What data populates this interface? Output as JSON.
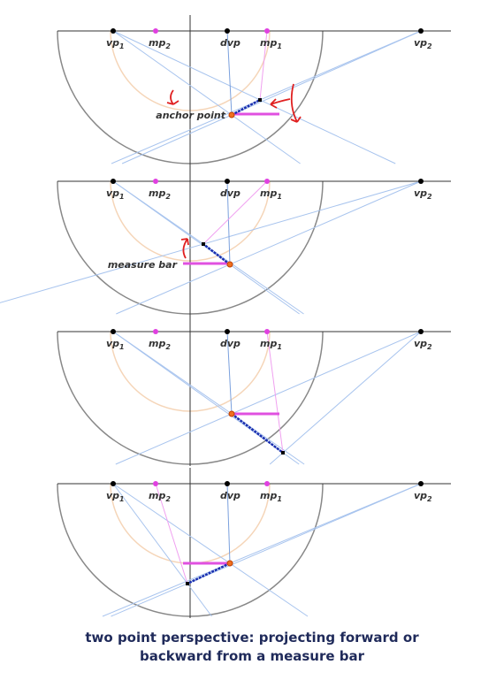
{
  "panels": [
    {
      "labels": [
        {
          "base": "vp",
          "sub": "1"
        },
        {
          "base": "mp",
          "sub": "2"
        },
        {
          "base": "dvp"
        },
        {
          "base": "mp",
          "sub": "1"
        },
        {
          "base": "vp",
          "sub": "2"
        }
      ],
      "annotation": "anchor point"
    },
    {
      "labels": [
        {
          "base": "vp",
          "sub": "1"
        },
        {
          "base": "mp",
          "sub": "2"
        },
        {
          "base": "dvp"
        },
        {
          "base": "mp",
          "sub": "1"
        },
        {
          "base": "vp",
          "sub": "2"
        }
      ],
      "annotation": "measure bar"
    },
    {
      "labels": [
        {
          "base": "vp",
          "sub": "1"
        },
        {
          "base": "mp",
          "sub": "2"
        },
        {
          "base": "dvp"
        },
        {
          "base": "mp",
          "sub": "1"
        },
        {
          "base": "vp",
          "sub": "2"
        }
      ]
    },
    {
      "labels": [
        {
          "base": "vp",
          "sub": "1"
        },
        {
          "base": "mp",
          "sub": "2"
        },
        {
          "base": "dvp"
        },
        {
          "base": "mp",
          "sub": "1"
        },
        {
          "base": "vp",
          "sub": "2"
        }
      ]
    }
  ],
  "caption": {
    "line1": "two point perspective: projecting forward or",
    "line2": "backward from a measure bar"
  }
}
